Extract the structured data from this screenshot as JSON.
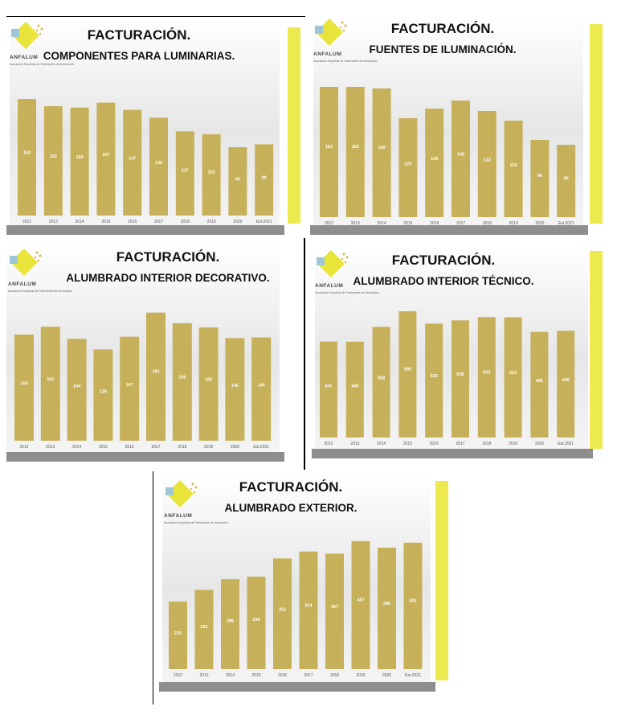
{
  "logo": {
    "brand": "ANFALUM",
    "sub": "Asociación Española de Fabricantes de Iluminación"
  },
  "colors": {
    "bar": "#c6b15a",
    "strip": "#ecea4e",
    "footer": "#8e8e8e"
  },
  "chart_data": [
    {
      "type": "bar",
      "title": "FACTURACIÓN.",
      "subtitle": "COMPONENTES PARA LUMINARIAS.",
      "categories": [
        "2012",
        "2013",
        "2014",
        "2015",
        "2016",
        "2017",
        "2018",
        "2019",
        "2020",
        "Est.2021"
      ],
      "values": [
        162,
        152,
        150,
        157,
        147,
        136,
        117,
        113,
        95,
        99
      ],
      "ylim": [
        0,
        180
      ]
    },
    {
      "type": "bar",
      "title": "FACTURACIÓN.",
      "subtitle": "FUENTES DE ILUMINACIÓN.",
      "categories": [
        "2012",
        "2013",
        "2014",
        "2015",
        "2016",
        "2017",
        "2018",
        "2019",
        "2020",
        "Est.2021"
      ],
      "values": [
        162,
        162,
        160,
        123,
        135,
        145,
        132,
        120,
        96,
        90
      ],
      "ylim": [
        0,
        180
      ]
    },
    {
      "type": "bar",
      "title": "FACTURACIÓN.",
      "subtitle": "ALUMBRADO INTERIOR DECORATIVO.",
      "categories": [
        "2012",
        "2013",
        "2014",
        "2015",
        "2016",
        "2017",
        "2018",
        "2019",
        "2020",
        "Est.2021"
      ],
      "values": [
        150,
        161,
        144,
        129,
        147,
        181,
        166,
        160,
        145,
        146
      ],
      "ylim": [
        0,
        200
      ]
    },
    {
      "type": "bar",
      "title": "FACTURACIÓN.",
      "subtitle": "ALUMBRADO INTERIOR TÉCNICO.",
      "categories": [
        "2012",
        "2013",
        "2014",
        "2015",
        "2016",
        "2017",
        "2018",
        "2019",
        "2020",
        "Est.2021"
      ],
      "values": [
        441,
        440,
        508,
        580,
        523,
        538,
        553,
        552,
        485,
        490
      ],
      "ylim": [
        0,
        650
      ]
    },
    {
      "type": "bar",
      "title": "FACTURACIÓN.",
      "subtitle": "ALUMBRADO EXTERIOR.",
      "categories": [
        "2012",
        "2013",
        "2014",
        "2015",
        "2016",
        "2017",
        "2018",
        "2019",
        "2020",
        "Est.2021"
      ],
      "values": [
        215,
        252,
        286,
        294,
        352,
        374,
        367,
        407,
        386,
        402
      ],
      "ylim": [
        0,
        450
      ]
    }
  ]
}
